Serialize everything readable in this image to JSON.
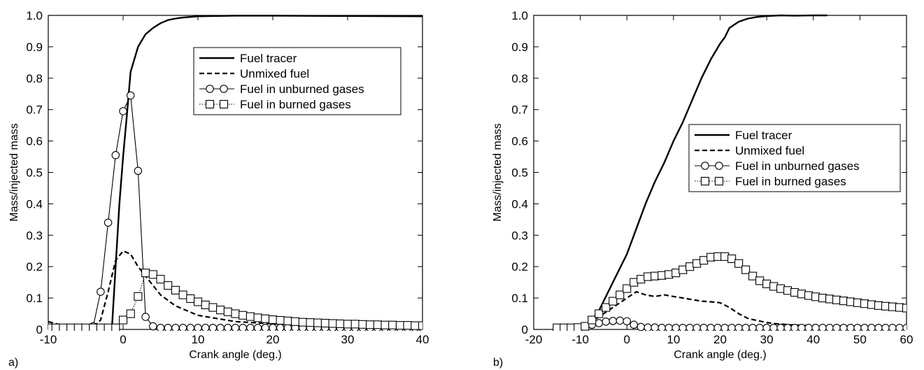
{
  "chart_data": [
    {
      "type": "line",
      "panel_label": "a)",
      "xlabel": "Crank angle (deg.)",
      "ylabel": "Mass/injected mass",
      "xlim": [
        -10,
        40
      ],
      "ylim": [
        0,
        1.0
      ],
      "xticks": [
        -10,
        0,
        10,
        20,
        30,
        40
      ],
      "yticks": [
        0,
        0.1,
        0.2,
        0.3,
        0.4,
        0.5,
        0.6,
        0.7,
        0.8,
        0.9,
        1.0
      ],
      "xtick_labels": [
        "-10",
        "0",
        "10",
        "20",
        "30",
        "40"
      ],
      "ytick_labels": [
        "0",
        "0.1",
        "0.2",
        "0.3",
        "0.4",
        "0.5",
        "0.6",
        "0.7",
        "0.8",
        "0.9",
        "1.0"
      ],
      "legend_position": "upper-right",
      "grid": false,
      "series": [
        {
          "name": "Fuel tracer",
          "style": "solid",
          "marker": "none",
          "x": [
            -1.5,
            -1,
            -0.5,
            0,
            0.5,
            1,
            2,
            3,
            4,
            5,
            6,
            7,
            8,
            9,
            10,
            12,
            15,
            20,
            30,
            40
          ],
          "y": [
            0,
            0.2,
            0.4,
            0.55,
            0.68,
            0.82,
            0.9,
            0.94,
            0.96,
            0.975,
            0.985,
            0.99,
            0.993,
            0.995,
            0.997,
            0.998,
            0.999,
            0.999,
            0.998,
            0.997
          ]
        },
        {
          "name": "Unmixed fuel",
          "style": "dashed",
          "marker": "none",
          "x": [
            -10,
            -8,
            -6,
            -4,
            -3,
            -2,
            -1,
            0,
            1,
            2,
            3,
            4,
            5,
            7,
            10,
            15,
            20,
            25,
            30,
            40
          ],
          "y": [
            0.025,
            0.012,
            0.005,
            0.008,
            0.03,
            0.12,
            0.22,
            0.25,
            0.24,
            0.2,
            0.17,
            0.14,
            0.11,
            0.075,
            0.045,
            0.025,
            0.018,
            0.014,
            0.012,
            0.01
          ]
        },
        {
          "name": "Fuel in unburned gases",
          "style": "thin-solid",
          "marker": "circle",
          "x": [
            -10,
            -9,
            -8,
            -7,
            -6,
            -5,
            -4,
            -3,
            -2,
            -1,
            0,
            1,
            2,
            3,
            4,
            5,
            6,
            7,
            8,
            9,
            10,
            11,
            12,
            13,
            14,
            15,
            16,
            17,
            18,
            19,
            20,
            21,
            22,
            23,
            24,
            25,
            26,
            27,
            28,
            29,
            30,
            31,
            32,
            33,
            34,
            35,
            36,
            37,
            38,
            39,
            40
          ],
          "y": [
            0.005,
            0.005,
            0.005,
            0.005,
            0.005,
            0.005,
            0.01,
            0.12,
            0.34,
            0.555,
            0.695,
            0.745,
            0.505,
            0.04,
            0.01,
            0.005,
            0.005,
            0.005,
            0.005,
            0.005,
            0.005,
            0.005,
            0.005,
            0.005,
            0.005,
            0.005,
            0.005,
            0.005,
            0.005,
            0.005,
            0.005,
            0.005,
            0.005,
            0.005,
            0.005,
            0.005,
            0.005,
            0.005,
            0.005,
            0.005,
            0.005,
            0.005,
            0.005,
            0.005,
            0.005,
            0.005,
            0.005,
            0.005,
            0.005,
            0.005,
            0.005
          ]
        },
        {
          "name": "Fuel in burned gases",
          "style": "dotted",
          "marker": "square",
          "x": [
            -10,
            -9,
            -8,
            -7,
            -6,
            -5,
            -4,
            -3,
            -2,
            -1,
            0,
            1,
            2,
            3,
            4,
            5,
            6,
            7,
            8,
            9,
            10,
            11,
            12,
            13,
            14,
            15,
            16,
            17,
            18,
            19,
            20,
            21,
            22,
            23,
            24,
            25,
            26,
            27,
            28,
            29,
            30,
            31,
            32,
            33,
            34,
            35,
            36,
            37,
            38,
            39,
            40
          ],
          "y": [
            0.005,
            0.005,
            0.005,
            0.005,
            0.005,
            0.005,
            0.005,
            0.005,
            0.005,
            0.005,
            0.03,
            0.05,
            0.105,
            0.18,
            0.175,
            0.16,
            0.14,
            0.125,
            0.11,
            0.098,
            0.088,
            0.078,
            0.07,
            0.062,
            0.056,
            0.05,
            0.045,
            0.041,
            0.037,
            0.034,
            0.031,
            0.029,
            0.027,
            0.025,
            0.023,
            0.022,
            0.021,
            0.02,
            0.019,
            0.018,
            0.017,
            0.017,
            0.016,
            0.015,
            0.015,
            0.014,
            0.014,
            0.013,
            0.013,
            0.012,
            0.012
          ]
        }
      ]
    },
    {
      "type": "line",
      "panel_label": "b)",
      "xlabel": "Crank angle (deg.)",
      "ylabel": "Mass/injected mass",
      "xlim": [
        -20,
        60
      ],
      "ylim": [
        0,
        1.0
      ],
      "xticks": [
        -20,
        -10,
        0,
        10,
        20,
        30,
        40,
        50,
        60
      ],
      "yticks": [
        0,
        0.1,
        0.2,
        0.3,
        0.4,
        0.5,
        0.6,
        0.7,
        0.8,
        0.9,
        1.0
      ],
      "xtick_labels": [
        "-20",
        "-10",
        "0",
        "10",
        "20",
        "30",
        "40",
        "50",
        "60"
      ],
      "ytick_labels": [
        "0",
        "0.1",
        "0.2",
        "0.3",
        "0.4",
        "0.5",
        "0.6",
        "0.7",
        "0.8",
        "0.9",
        "1.0"
      ],
      "legend_position": "center-right",
      "grid": false,
      "series": [
        {
          "name": "Fuel tracer",
          "style": "solid",
          "marker": "none",
          "x": [
            -8,
            -6,
            -4,
            -2,
            0,
            2,
            4,
            6,
            8,
            10,
            12,
            14,
            16,
            18,
            20,
            21,
            22,
            24,
            26,
            28,
            30,
            33,
            36,
            40,
            43
          ],
          "y": [
            0.02,
            0.06,
            0.12,
            0.18,
            0.24,
            0.32,
            0.4,
            0.47,
            0.53,
            0.6,
            0.66,
            0.73,
            0.8,
            0.86,
            0.91,
            0.93,
            0.96,
            0.98,
            0.99,
            0.995,
            0.998,
            1.0,
            0.999,
            1.0,
            1.0
          ]
        },
        {
          "name": "Unmixed fuel",
          "style": "dashed",
          "marker": "none",
          "x": [
            -8,
            -6,
            -4,
            -2,
            0,
            2,
            4,
            6,
            8,
            10,
            12,
            14,
            16,
            18,
            20,
            22,
            24,
            26,
            28,
            30,
            32,
            35,
            40,
            50,
            60
          ],
          "y": [
            0.02,
            0.04,
            0.06,
            0.08,
            0.1,
            0.12,
            0.11,
            0.105,
            0.11,
            0.105,
            0.1,
            0.095,
            0.09,
            0.088,
            0.085,
            0.07,
            0.05,
            0.035,
            0.028,
            0.022,
            0.018,
            0.015,
            0.012,
            0.01,
            0.01
          ]
        },
        {
          "name": "Fuel in unburned gases",
          "style": "thin-solid",
          "marker": "circle",
          "x": [
            -15,
            -13.5,
            -12,
            -10.5,
            -9,
            -7.5,
            -6,
            -4.5,
            -3,
            -1.5,
            0,
            1.5,
            3,
            4.5,
            6,
            7.5,
            9,
            10.5,
            12,
            13.5,
            15,
            16.5,
            18,
            19.5,
            21,
            22.5,
            24,
            25.5,
            27,
            28.5,
            30,
            31.5,
            33,
            34.5,
            36,
            37.5,
            39,
            40.5,
            42,
            43.5,
            45,
            46.5,
            48,
            49.5,
            51,
            52.5,
            54,
            55.5,
            57,
            58.5,
            60
          ],
          "y": [
            0.005,
            0.005,
            0.005,
            0.005,
            0.01,
            0.015,
            0.02,
            0.025,
            0.027,
            0.028,
            0.026,
            0.015,
            0.008,
            0.006,
            0.006,
            0.005,
            0.005,
            0.005,
            0.005,
            0.005,
            0.005,
            0.005,
            0.005,
            0.005,
            0.005,
            0.005,
            0.005,
            0.005,
            0.005,
            0.005,
            0.005,
            0.005,
            0.005,
            0.005,
            0.005,
            0.005,
            0.005,
            0.005,
            0.005,
            0.005,
            0.005,
            0.005,
            0.005,
            0.005,
            0.005,
            0.005,
            0.005,
            0.005,
            0.005,
            0.005,
            0.005
          ]
        },
        {
          "name": "Fuel in burned gases",
          "style": "dotted",
          "marker": "square",
          "x": [
            -15,
            -13.5,
            -12,
            -10.5,
            -9,
            -7.5,
            -6,
            -4.5,
            -3,
            -1.5,
            0,
            1.5,
            3,
            4.5,
            6,
            7.5,
            9,
            10.5,
            12,
            13.5,
            15,
            16.5,
            18,
            19.5,
            21,
            22.5,
            24,
            25.5,
            27,
            28.5,
            30,
            31.5,
            33,
            34.5,
            36,
            37.5,
            39,
            40.5,
            42,
            43.5,
            45,
            46.5,
            48,
            49.5,
            51,
            52.5,
            54,
            55.5,
            57,
            58.5,
            60
          ],
          "y": [
            0.005,
            0.005,
            0.005,
            0.006,
            0.01,
            0.03,
            0.05,
            0.07,
            0.09,
            0.11,
            0.13,
            0.15,
            0.16,
            0.168,
            0.17,
            0.172,
            0.175,
            0.18,
            0.19,
            0.2,
            0.21,
            0.22,
            0.23,
            0.232,
            0.232,
            0.225,
            0.21,
            0.19,
            0.17,
            0.155,
            0.145,
            0.137,
            0.13,
            0.124,
            0.118,
            0.113,
            0.108,
            0.104,
            0.1,
            0.097,
            0.094,
            0.091,
            0.088,
            0.085,
            0.082,
            0.079,
            0.076,
            0.074,
            0.072,
            0.07,
            0.068
          ]
        }
      ]
    }
  ]
}
